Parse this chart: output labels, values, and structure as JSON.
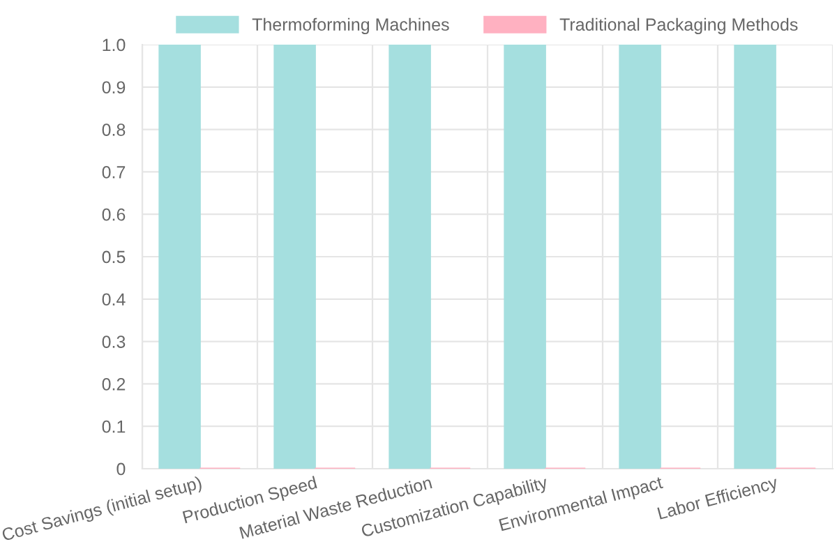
{
  "chart_data": {
    "type": "bar",
    "categories": [
      "Cost Savings (initial setup)",
      "Production Speed",
      "Material Waste Reduction",
      "Customization Capability",
      "Environmental Impact",
      "Labor Efficiency"
    ],
    "series": [
      {
        "name": "Thermoforming Machines",
        "color": "#a5dfdf",
        "values": [
          1,
          1,
          1,
          1,
          1,
          1
        ]
      },
      {
        "name": "Traditional Packaging Methods",
        "color": "#ffb1c1",
        "values": [
          0,
          0,
          0,
          0,
          0,
          0
        ]
      }
    ],
    "ylim": [
      0,
      1
    ],
    "yticks": [
      0,
      0.1,
      0.2,
      0.3,
      0.4,
      0.5,
      0.6,
      0.7,
      0.8,
      0.9,
      {
        "value": 1,
        "label": "1.0"
      }
    ],
    "grid": true,
    "legend": "top"
  }
}
